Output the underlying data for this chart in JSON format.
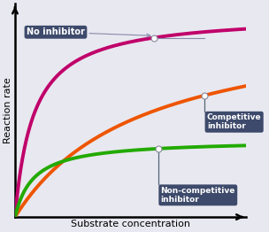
{
  "xlabel": "Substrate concentration",
  "ylabel": "Reaction rate",
  "background_color": "#e8e8f0",
  "plot_bg_color": "#e8e8f0",
  "grid_color": "#ffffff",
  "no_inhibitor_color": "#c0006a",
  "competitive_color": "#ee5500",
  "noncompetitive_color": "#22aa00",
  "annotation_bg": "#3d4a6b",
  "annotation_text_color": "#ffffff",
  "no_inhibitor_label": "No inhibitor",
  "competitive_label": "Competitive\ninhibitor",
  "noncompetitive_label": "Non-competitive\ninhibitor",
  "Km_no": 0.08,
  "Vmax_no": 1.0,
  "Km_comp": 0.55,
  "Vmax_comp": 1.0,
  "Km_noncomp": 0.08,
  "Vmax_noncomp": 0.38,
  "xlim": [
    0,
    1.0
  ],
  "ylim": [
    0,
    1.05
  ],
  "line_width": 2.8,
  "marker_size": 5
}
